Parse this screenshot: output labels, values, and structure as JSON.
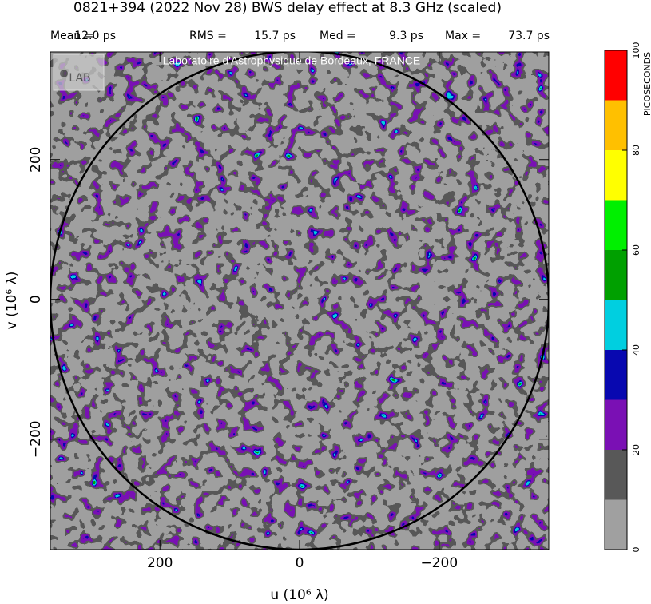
{
  "chart_data": {
    "type": "heatmap",
    "title": "0821+394  (2022 Nov 28)   BWS delay effect at  8.3 GHz (scaled)",
    "stats": [
      {
        "name": "Mean =",
        "value": "12.0 ps"
      },
      {
        "name": "RMS =",
        "value": "15.7 ps"
      },
      {
        "name": "Med =",
        "value": "9.3 ps"
      },
      {
        "name": "Max =",
        "value": "73.7 ps"
      }
    ],
    "watermark": "Laboratoire d'Astrophysique de Bordeaux, FRANCE",
    "logo_text": "LAB",
    "xlabel": "u  (10⁶ λ)",
    "ylabel": "v  (10⁶ λ)",
    "xlim": [
      357,
      -357
    ],
    "ylim": [
      -358,
      354
    ],
    "xticks": [
      200,
      0,
      {
        "value": -200,
        "label": "−200"
      }
    ],
    "yticks": [
      {
        "value": -200,
        "label": "−200"
      },
      0,
      200
    ],
    "colorbar": {
      "label": "PICOSECONDS",
      "levels": [
        0,
        10,
        20,
        30,
        40,
        50,
        60,
        70,
        80,
        90,
        100
      ],
      "ticks": [
        0,
        20,
        40,
        60,
        80,
        100
      ],
      "colors": [
        "#a0a0a0",
        "#585858",
        "#7a10b4",
        "#0808b0",
        "#00cfe0",
        "#00a000",
        "#00f000",
        "#ffff00",
        "#ffc000",
        "#ff0000"
      ]
    }
  }
}
